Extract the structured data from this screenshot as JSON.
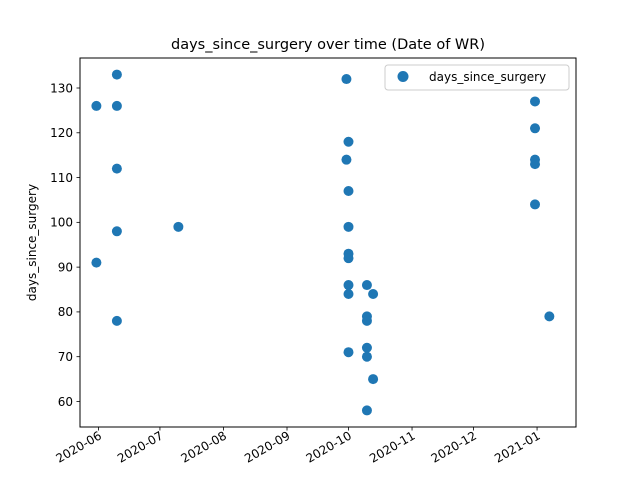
{
  "chart_data": {
    "type": "scatter",
    "title": "days_since_surgery over time (Date of WR)",
    "xlabel": "",
    "ylabel": "days_since_surgery",
    "x_axis_type": "date",
    "xlim": [
      "2020-05-23",
      "2021-01-20"
    ],
    "ylim": [
      54.3,
      136.7
    ],
    "x_ticks": [
      "2020-06-01",
      "2020-07-01",
      "2020-08-01",
      "2020-09-01",
      "2020-10-01",
      "2020-11-01",
      "2020-12-01",
      "2021-01-01"
    ],
    "x_tick_labels": [
      "2020-06",
      "2020-07",
      "2020-08",
      "2020-09",
      "2020-10",
      "2020-11",
      "2020-12",
      "2021-01"
    ],
    "y_ticks": [
      60,
      70,
      80,
      90,
      100,
      110,
      120,
      130
    ],
    "y_tick_labels": [
      "60",
      "70",
      "80",
      "90",
      "100",
      "110",
      "120",
      "130"
    ],
    "grid": false,
    "legend_position": "upper right",
    "series": [
      {
        "name": "days_since_surgery",
        "color": "#1f77b4",
        "points": [
          {
            "x": "2020-05-31",
            "y": 126
          },
          {
            "x": "2020-05-31",
            "y": 91
          },
          {
            "x": "2020-06-10",
            "y": 133
          },
          {
            "x": "2020-06-10",
            "y": 126
          },
          {
            "x": "2020-06-10",
            "y": 112
          },
          {
            "x": "2020-06-10",
            "y": 98
          },
          {
            "x": "2020-06-10",
            "y": 78
          },
          {
            "x": "2020-07-10",
            "y": 99
          },
          {
            "x": "2020-09-30",
            "y": 132
          },
          {
            "x": "2020-10-01",
            "y": 118
          },
          {
            "x": "2020-09-30",
            "y": 114
          },
          {
            "x": "2020-10-01",
            "y": 107
          },
          {
            "x": "2020-10-01",
            "y": 99
          },
          {
            "x": "2020-10-01",
            "y": 93
          },
          {
            "x": "2020-10-01",
            "y": 92
          },
          {
            "x": "2020-10-01",
            "y": 86
          },
          {
            "x": "2020-10-01",
            "y": 84
          },
          {
            "x": "2020-10-01",
            "y": 71
          },
          {
            "x": "2020-10-10",
            "y": 86
          },
          {
            "x": "2020-10-10",
            "y": 79
          },
          {
            "x": "2020-10-10",
            "y": 78
          },
          {
            "x": "2020-10-10",
            "y": 72
          },
          {
            "x": "2020-10-10",
            "y": 70
          },
          {
            "x": "2020-10-10",
            "y": 58
          },
          {
            "x": "2020-10-13",
            "y": 84
          },
          {
            "x": "2020-10-13",
            "y": 65
          },
          {
            "x": "2020-12-31",
            "y": 127
          },
          {
            "x": "2020-12-31",
            "y": 121
          },
          {
            "x": "2020-12-31",
            "y": 114
          },
          {
            "x": "2020-12-31",
            "y": 113
          },
          {
            "x": "2020-12-31",
            "y": 104
          },
          {
            "x": "2021-01-07",
            "y": 79
          }
        ]
      }
    ]
  }
}
